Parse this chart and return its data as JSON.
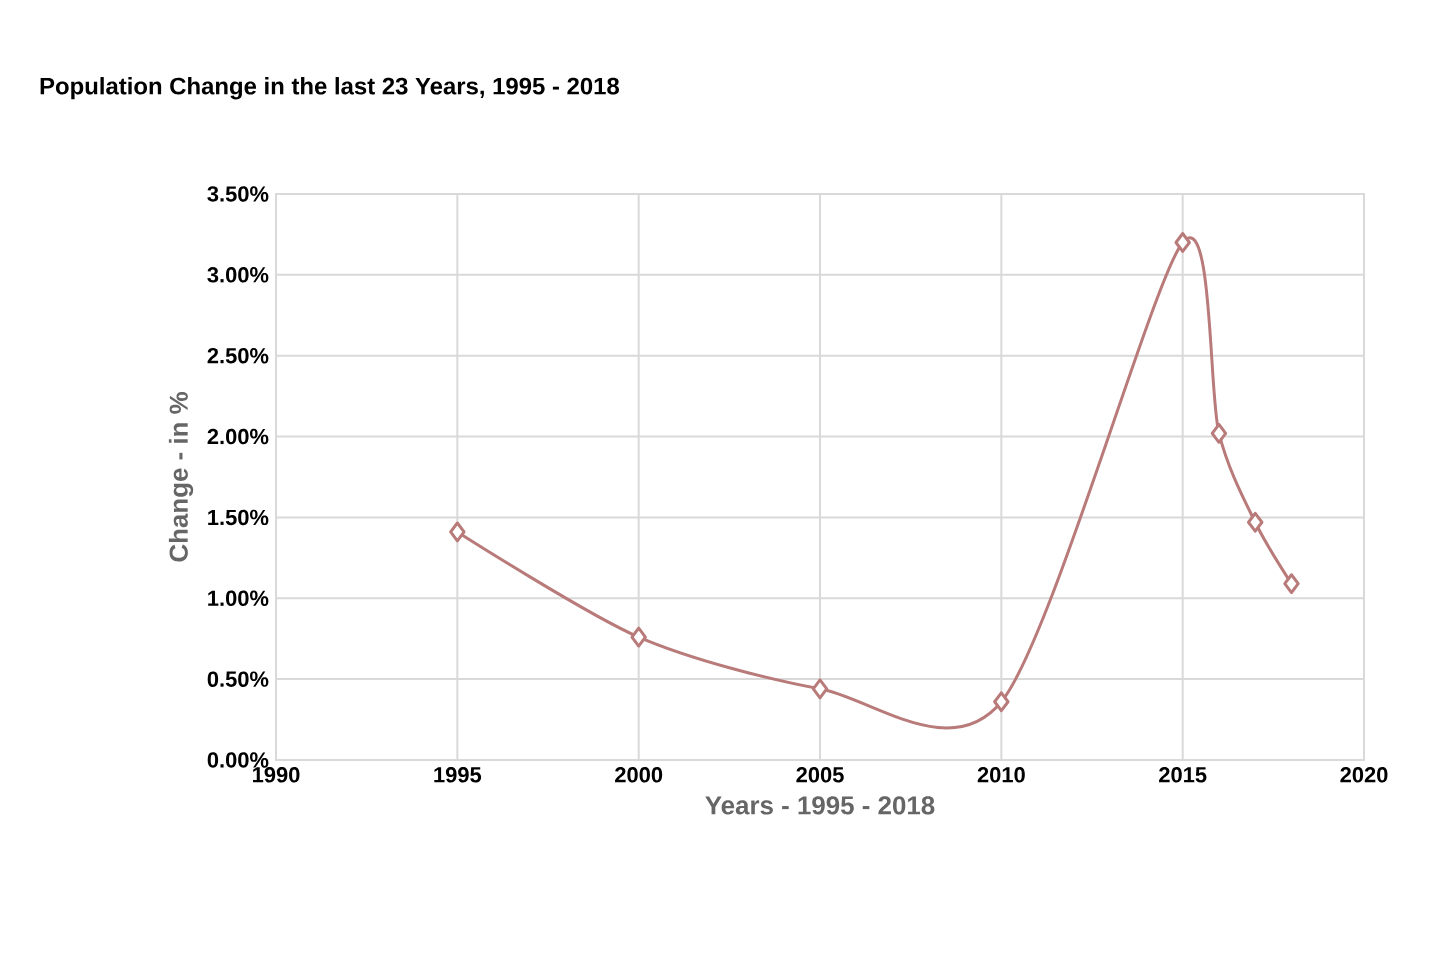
{
  "chart_data": {
    "type": "line",
    "title": "Population Change in the last 23 Years, 1995 - 2018",
    "xlabel": "Years - 1995 - 2018",
    "ylabel": "Change - in %",
    "x": [
      1995,
      2000,
      2005,
      2010,
      2015,
      2016,
      2017,
      2018
    ],
    "series": [
      {
        "color": "#b97a7a",
        "values": [
          1.41,
          0.76,
          0.44,
          0.36,
          3.2,
          2.02,
          1.47,
          1.09
        ]
      }
    ],
    "xlim": [
      1990,
      2020
    ],
    "xticks": [
      1990,
      1995,
      2000,
      2005,
      2010,
      2015,
      2020
    ],
    "ylim": [
      0,
      3.5
    ],
    "yticks": [
      {
        "value": 0,
        "label": "0.00%"
      },
      {
        "value": 0.5,
        "label": "0.50%"
      },
      {
        "value": 1,
        "label": "1.00%"
      },
      {
        "value": 1.5,
        "label": "1.50%"
      },
      {
        "value": 2,
        "label": "2.00%"
      },
      {
        "value": 2.5,
        "label": "2.50%"
      },
      {
        "value": 3,
        "label": "3.00%"
      },
      {
        "value": 3.5,
        "label": "3.50%"
      }
    ],
    "grid": true,
    "marker": "diamond",
    "line_style": "solid"
  }
}
